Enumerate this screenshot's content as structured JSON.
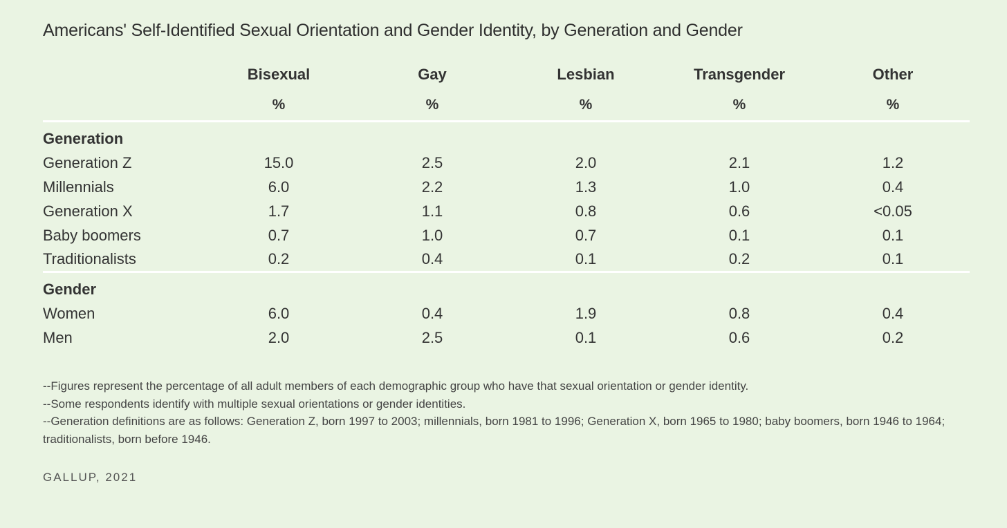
{
  "title": "Americans' Self-Identified Sexual Orientation and Gender Identity, by Generation and Gender",
  "chart_data": {
    "type": "table",
    "title": "Americans' Self-Identified Sexual Orientation and Gender Identity, by Generation and Gender",
    "columns": [
      "Bisexual",
      "Gay",
      "Lesbian",
      "Transgender",
      "Other"
    ],
    "units": [
      "%",
      "%",
      "%",
      "%",
      "%"
    ],
    "sections": [
      {
        "name": "Generation",
        "rows": [
          {
            "label": "Generation Z",
            "values": [
              "15.0",
              "2.5",
              "2.0",
              "2.1",
              "1.2"
            ]
          },
          {
            "label": "Millennials",
            "values": [
              "6.0",
              "2.2",
              "1.3",
              "1.0",
              "0.4"
            ]
          },
          {
            "label": "Generation X",
            "values": [
              "1.7",
              "1.1",
              "0.8",
              "0.6",
              "<0.05"
            ]
          },
          {
            "label": "Baby boomers",
            "values": [
              "0.7",
              "1.0",
              "0.7",
              "0.1",
              "0.1"
            ]
          },
          {
            "label": "Traditionalists",
            "values": [
              "0.2",
              "0.4",
              "0.1",
              "0.2",
              "0.1"
            ]
          }
        ]
      },
      {
        "name": "Gender",
        "rows": [
          {
            "label": "Women",
            "values": [
              "6.0",
              "0.4",
              "1.9",
              "0.8",
              "0.4"
            ]
          },
          {
            "label": "Men",
            "values": [
              "2.0",
              "2.5",
              "0.1",
              "0.6",
              "0.2"
            ]
          }
        ]
      }
    ]
  },
  "notes": [
    "--Figures represent the percentage of all adult members of each demographic group who have that sexual orientation or gender identity.",
    "--Some respondents identify with multiple sexual orientations or gender identities.",
    "--Generation definitions are as follows: Generation Z, born 1997 to 2003; millennials, born 1981 to 1996; Generation X, born 1965 to 1980; baby boomers, born 1946 to 1964; traditionalists, born before 1946."
  ],
  "source": "GALLUP, 2021"
}
